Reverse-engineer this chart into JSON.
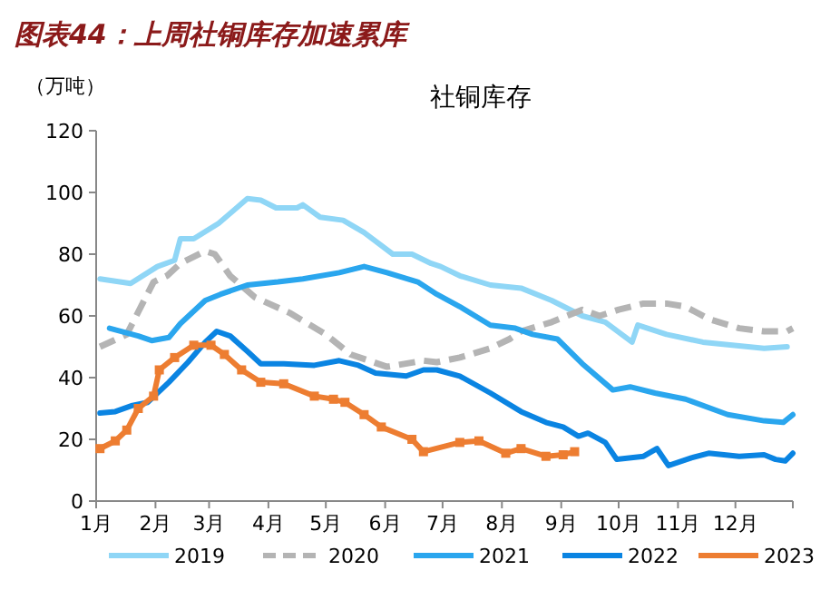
{
  "chart_data": {
    "type": "line",
    "title": "图表44：上周社铜库存加速累库",
    "subtitle": "社铜库存",
    "ylabel": "（万吨）",
    "ylim": [
      0,
      120
    ],
    "yticks": [
      0,
      20,
      40,
      60,
      80,
      100,
      120
    ],
    "xlim": [
      "--01-01",
      "--12-31"
    ],
    "xticks": [
      {
        "value": "--01-01",
        "label": "1月"
      },
      {
        "value": "--02-01",
        "label": "2月"
      },
      {
        "value": "--03-01",
        "label": "3月"
      },
      {
        "value": "--04-01",
        "label": "4月"
      },
      {
        "value": "--05-01",
        "label": "5月"
      },
      {
        "value": "--06-01",
        "label": "6月"
      },
      {
        "value": "--07-01",
        "label": "7月"
      },
      {
        "value": "--08-01",
        "label": "8月"
      },
      {
        "value": "--09-01",
        "label": "9月"
      },
      {
        "value": "--10-01",
        "label": "10月"
      },
      {
        "value": "--11-01",
        "label": "11月"
      },
      {
        "value": "--12-01",
        "label": "12月"
      },
      {
        "value": "--12-31",
        "label": null
      }
    ],
    "grid": false,
    "legend": "bottom",
    "marker": "none",
    "series": [
      {
        "name": "2019",
        "color": "#8fd6f6",
        "line_style": "solid",
        "x": [
          "--01-03",
          "--01-19",
          "--02-02",
          "--02-11",
          "--02-14",
          "--02-21",
          "--03-06",
          "--03-21",
          "--03-28",
          "--04-05",
          "--04-16",
          "--04-19",
          "--04-28",
          "--05-10",
          "--05-21",
          "--06-05",
          "--06-15",
          "--06-25",
          "--06-30",
          "--07-10",
          "--07-26",
          "--08-11",
          "--08-27",
          "--09-12",
          "--09-24",
          "--10-08",
          "--10-11",
          "--10-26",
          "--11-14",
          "--12-16",
          "--12-28"
        ],
        "values": [
          72,
          70.5,
          76,
          78,
          85,
          85,
          90,
          98,
          97.5,
          95,
          95,
          96,
          92,
          91,
          87,
          80,
          80,
          77,
          76,
          73,
          70,
          69,
          65,
          60,
          58,
          51.5,
          57,
          54,
          51.5,
          49.5,
          50
        ]
      },
      {
        "name": "2020",
        "color": "#b4b4b4",
        "line_style": "dashed",
        "x": [
          "--01-03",
          "--01-17",
          "--01-31",
          "--02-07",
          "--02-14",
          "--02-27",
          "--03-04",
          "--03-12",
          "--03-25",
          "--04-12",
          "--05-01",
          "--05-14",
          "--06-02",
          "--06-21",
          "--06-28",
          "--07-10",
          "--07-26",
          "--08-05",
          "--08-11",
          "--08-27",
          "--09-12",
          "--09-21",
          "--10-01",
          "--10-14",
          "--10-26",
          "--11-05",
          "--11-17",
          "--12-03",
          "--12-16",
          "--12-28",
          "--12-31"
        ],
        "values": [
          50,
          54,
          71,
          73,
          77,
          81,
          80,
          73,
          66,
          61,
          54,
          47.5,
          43.5,
          45.5,
          45,
          46.5,
          49.5,
          52.5,
          55,
          58,
          62,
          60,
          62,
          64,
          64,
          63,
          59,
          56,
          55,
          55,
          56
        ]
      },
      {
        "name": "2021",
        "color": "#2aa6ee",
        "line_style": "solid",
        "x": [
          "--01-08",
          "--01-23",
          "--01-30",
          "--02-08",
          "--02-14",
          "--02-27",
          "--03-07",
          "--03-21",
          "--04-06",
          "--04-19",
          "--05-08",
          "--05-21",
          "--06-02",
          "--06-18",
          "--06-28",
          "--07-10",
          "--07-26",
          "--08-08",
          "--08-17",
          "--08-30",
          "--09-12",
          "--09-28",
          "--10-07",
          "--10-20",
          "--11-05",
          "--11-27",
          "--12-16",
          "--12-26",
          "--12-31"
        ],
        "values": [
          56,
          53.5,
          52,
          53,
          57.5,
          65,
          67,
          70,
          71,
          72,
          74,
          76,
          74,
          71,
          67,
          63,
          57,
          56,
          54,
          52.5,
          44.5,
          36,
          37,
          35,
          33,
          28,
          26,
          25.5,
          28
        ]
      },
      {
        "name": "2022",
        "color": "#0a84e2",
        "line_style": "solid",
        "x": [
          "--01-03",
          "--01-11",
          "--01-20",
          "--01-28",
          "--02-08",
          "--02-18",
          "--02-27",
          "--03-05",
          "--03-12",
          "--03-21",
          "--03-28",
          "--04-09",
          "--04-25",
          "--05-08",
          "--05-18",
          "--05-27",
          "--06-12",
          "--06-21",
          "--06-28",
          "--07-10",
          "--07-26",
          "--08-11",
          "--08-24",
          "--09-02",
          "--09-10",
          "--09-15",
          "--09-24",
          "--09-30",
          "--10-14",
          "--10-21",
          "--10-27",
          "--11-08",
          "--11-17",
          "--12-03",
          "--12-16",
          "--12-22",
          "--12-27",
          "--12-31"
        ],
        "values": [
          28.5,
          29,
          31,
          32,
          38.5,
          45,
          51.5,
          55,
          53.5,
          48.5,
          44.5,
          44.5,
          44,
          45.5,
          44,
          41.5,
          40.5,
          42.5,
          42.5,
          40.5,
          35,
          29,
          25.5,
          24,
          21,
          22,
          19,
          13.5,
          14.5,
          17,
          11.5,
          14,
          15.5,
          14.5,
          15,
          13.5,
          13,
          15.5
        ]
      },
      {
        "name": "2023",
        "color": "#ed7d31",
        "line_style": "solid",
        "marker": "square",
        "x": [
          "--01-03",
          "--01-11",
          "--01-17",
          "--01-23",
          "--01-31",
          "--02-03",
          "--02-11",
          "--02-21",
          "--03-02",
          "--03-09",
          "--03-18",
          "--03-28",
          "--04-09",
          "--04-25",
          "--05-05",
          "--05-11",
          "--05-21",
          "--05-30",
          "--06-15",
          "--06-21",
          "--07-10",
          "--07-20",
          "--08-03",
          "--08-11",
          "--08-24",
          "--09-02",
          "--09-08"
        ],
        "values": [
          17,
          19.5,
          23,
          30,
          34,
          42.5,
          46.5,
          50.5,
          50.5,
          47.5,
          42.5,
          38.5,
          38,
          34,
          33,
          32,
          28,
          24,
          20,
          16,
          19,
          19.5,
          15.5,
          17,
          14.5,
          15,
          16
        ]
      }
    ]
  }
}
